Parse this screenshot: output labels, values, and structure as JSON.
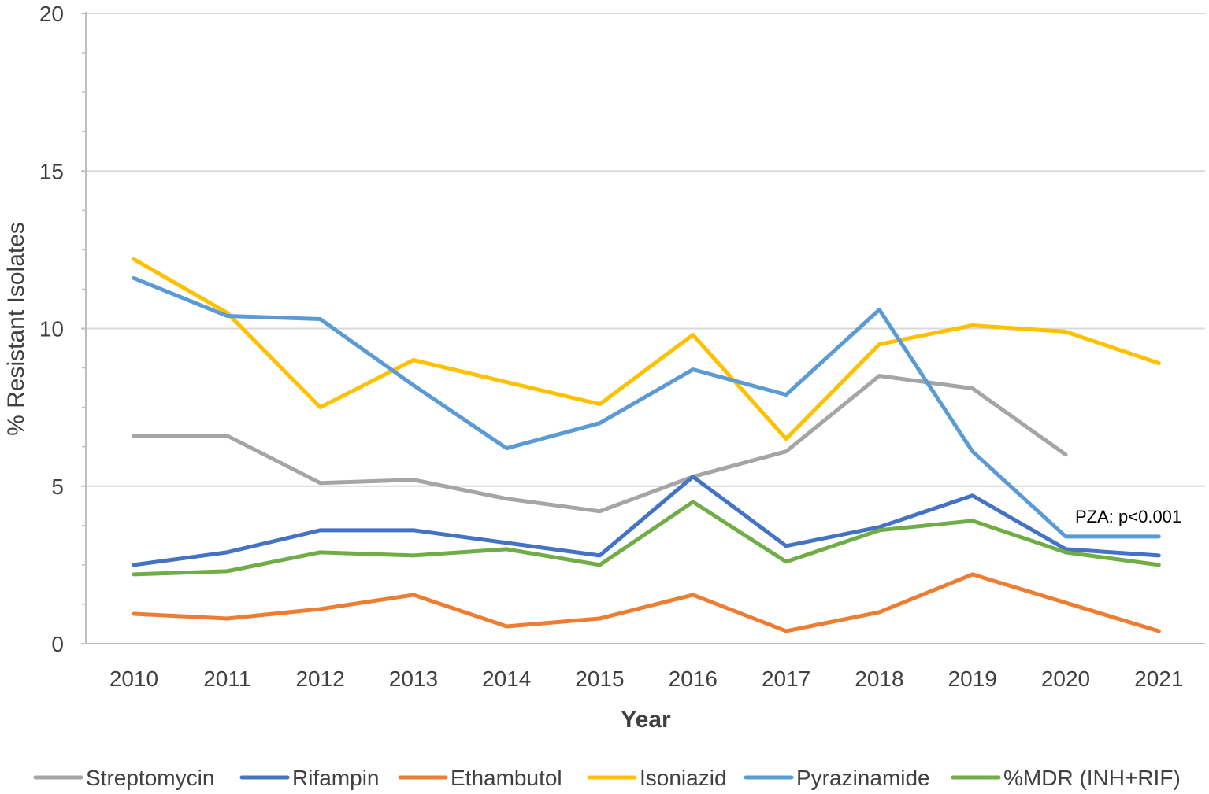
{
  "chart_data": {
    "type": "line",
    "title": "",
    "xlabel": "Year",
    "ylabel": "% Resistant Isolates",
    "ylim": [
      0,
      20
    ],
    "y_ticks": [
      "0",
      "5",
      "10",
      "15",
      "20"
    ],
    "y_tick_values": [
      0,
      5,
      10,
      15,
      20
    ],
    "categories": [
      "2010",
      "2011",
      "2012",
      "2013",
      "2014",
      "2015",
      "2016",
      "2017",
      "2018",
      "2019",
      "2020",
      "2021"
    ],
    "grid": true,
    "legend_position": "bottom",
    "series": [
      {
        "name": "Streptomycin",
        "color": "#a5a5a5",
        "values": [
          6.6,
          6.6,
          5.1,
          5.2,
          4.6,
          4.2,
          5.3,
          6.1,
          8.5,
          8.1,
          6.0,
          null
        ]
      },
      {
        "name": "Rifampin",
        "color": "#4472c4",
        "values": [
          2.5,
          2.9,
          3.6,
          3.6,
          3.2,
          2.8,
          5.3,
          3.1,
          3.7,
          4.7,
          3.0,
          2.8
        ]
      },
      {
        "name": "Ethambutol",
        "color": "#ed7d31",
        "values": [
          0.95,
          0.8,
          1.1,
          1.55,
          0.55,
          0.8,
          1.55,
          0.4,
          1.0,
          2.2,
          1.3,
          0.4
        ]
      },
      {
        "name": "Isoniazid",
        "color": "#ffc000",
        "values": [
          12.2,
          10.5,
          7.5,
          9.0,
          8.3,
          7.6,
          9.8,
          6.5,
          9.5,
          10.1,
          9.9,
          8.9
        ]
      },
      {
        "name": "Pyrazinamide",
        "color": "#5b9bd5",
        "values": [
          11.6,
          10.4,
          10.3,
          8.2,
          6.2,
          7.0,
          8.7,
          7.9,
          10.6,
          6.1,
          3.4,
          3.4
        ]
      },
      {
        "name": "%MDR (INH+RIF)",
        "color": "#70ad47",
        "values": [
          2.2,
          2.3,
          2.9,
          2.8,
          3.0,
          2.5,
          4.5,
          2.6,
          3.6,
          3.9,
          2.9,
          2.5
        ]
      }
    ],
    "annotations": [
      {
        "text": "PZA: p<0.001",
        "series": "Pyrazinamide",
        "category": "2021"
      }
    ]
  }
}
